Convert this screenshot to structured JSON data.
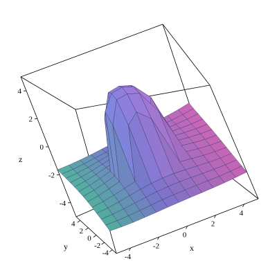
{
  "chart_data": {
    "type": "surface",
    "title": "",
    "xlabel": "x",
    "ylabel": "y",
    "zlabel": "z",
    "xlim": [
      -5,
      5
    ],
    "ylim": [
      -5,
      5
    ],
    "zlim": [
      -5,
      5
    ],
    "x_ticks": [
      "-4",
      "-2",
      "0",
      "2",
      "4"
    ],
    "y_ticks": [
      "4",
      "2",
      "0",
      "-2",
      "-4"
    ],
    "z_ticks": [
      "4",
      "2",
      "0",
      "-2",
      "-4"
    ],
    "box": true,
    "grid": false,
    "colors": {
      "low": "#5cc7b0",
      "mid": "#8884e6",
      "high": "#e070c8"
    },
    "surface": {
      "description_free_form": "z ≈ sqrt(4 - x^2 - y^2)+? plateau near center; saddle-like sheet elsewhere",
      "x": [
        -5,
        -4,
        -3,
        -2,
        -1,
        0,
        1,
        2,
        3,
        4,
        5
      ],
      "y": [
        -5,
        -4,
        -3,
        -2,
        -1,
        0,
        1,
        2,
        3,
        4,
        5
      ],
      "peak_height": 4,
      "edge_height_x": -2.5,
      "edge_height_y": 0.5
    }
  }
}
